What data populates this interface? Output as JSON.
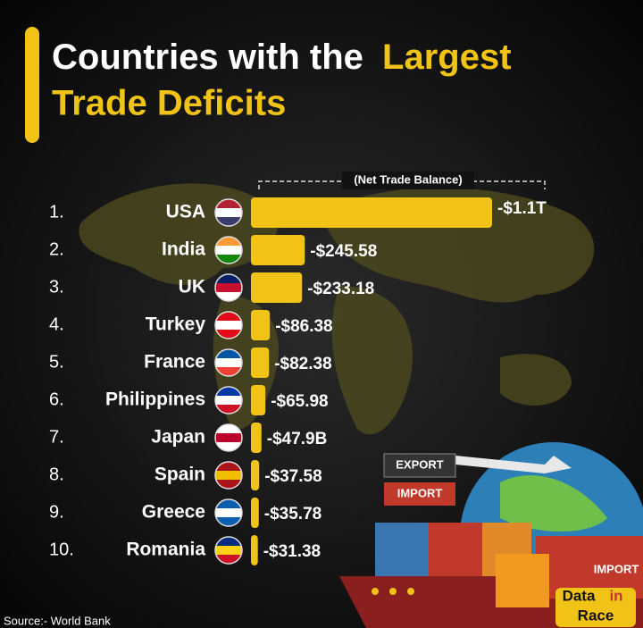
{
  "chart_data": {
    "type": "bar",
    "orientation": "horizontal",
    "title_parts": [
      "Countries with the",
      "Largest",
      "Trade Deficits"
    ],
    "subtitle": "(Net Trade Balance)",
    "ranks": [
      "1.",
      "2.",
      "3.",
      "4.",
      "5.",
      "6.",
      "7.",
      "8.",
      "9.",
      "10."
    ],
    "categories": [
      "USA",
      "India",
      "UK",
      "Turkey",
      "France",
      "Philippines",
      "Japan",
      "Spain",
      "Greece",
      "Romania"
    ],
    "values": [
      -1100,
      -245.58,
      -233.18,
      -86.38,
      -82.38,
      -65.98,
      -47.9,
      -37.58,
      -35.78,
      -31.38
    ],
    "value_labels": [
      "-$1.1T",
      "-$245.58",
      "-$233.18",
      "-$86.38",
      "-$82.38",
      "-$65.98",
      "-$47.9B",
      "-$37.58",
      "-$35.78",
      "-$31.38"
    ],
    "xlim": [
      0,
      -1100
    ],
    "color": "#f2c317",
    "flags": [
      [
        "#b22234",
        "#ffffff",
        "#3c3b6e"
      ],
      [
        "#ff9933",
        "#ffffff",
        "#138808"
      ],
      [
        "#012169",
        "#c8102e",
        "#ffffff"
      ],
      [
        "#e30a17",
        "#ffffff",
        "#e30a17"
      ],
      [
        "#0055a4",
        "#ffffff",
        "#ef4135"
      ],
      [
        "#0038a8",
        "#ffffff",
        "#ce1126"
      ],
      [
        "#ffffff",
        "#bc002d",
        "#ffffff"
      ],
      [
        "#aa151b",
        "#f1bf00",
        "#aa151b"
      ],
      [
        "#0d5eaf",
        "#ffffff",
        "#0d5eaf"
      ],
      [
        "#002b7f",
        "#fcd116",
        "#ce1126"
      ]
    ],
    "annotations": [
      "EXPORT",
      "IMPORT",
      "IMPORT"
    ],
    "logo": [
      "Data",
      "in",
      "Race"
    ],
    "source": "Source:- World Bank"
  }
}
